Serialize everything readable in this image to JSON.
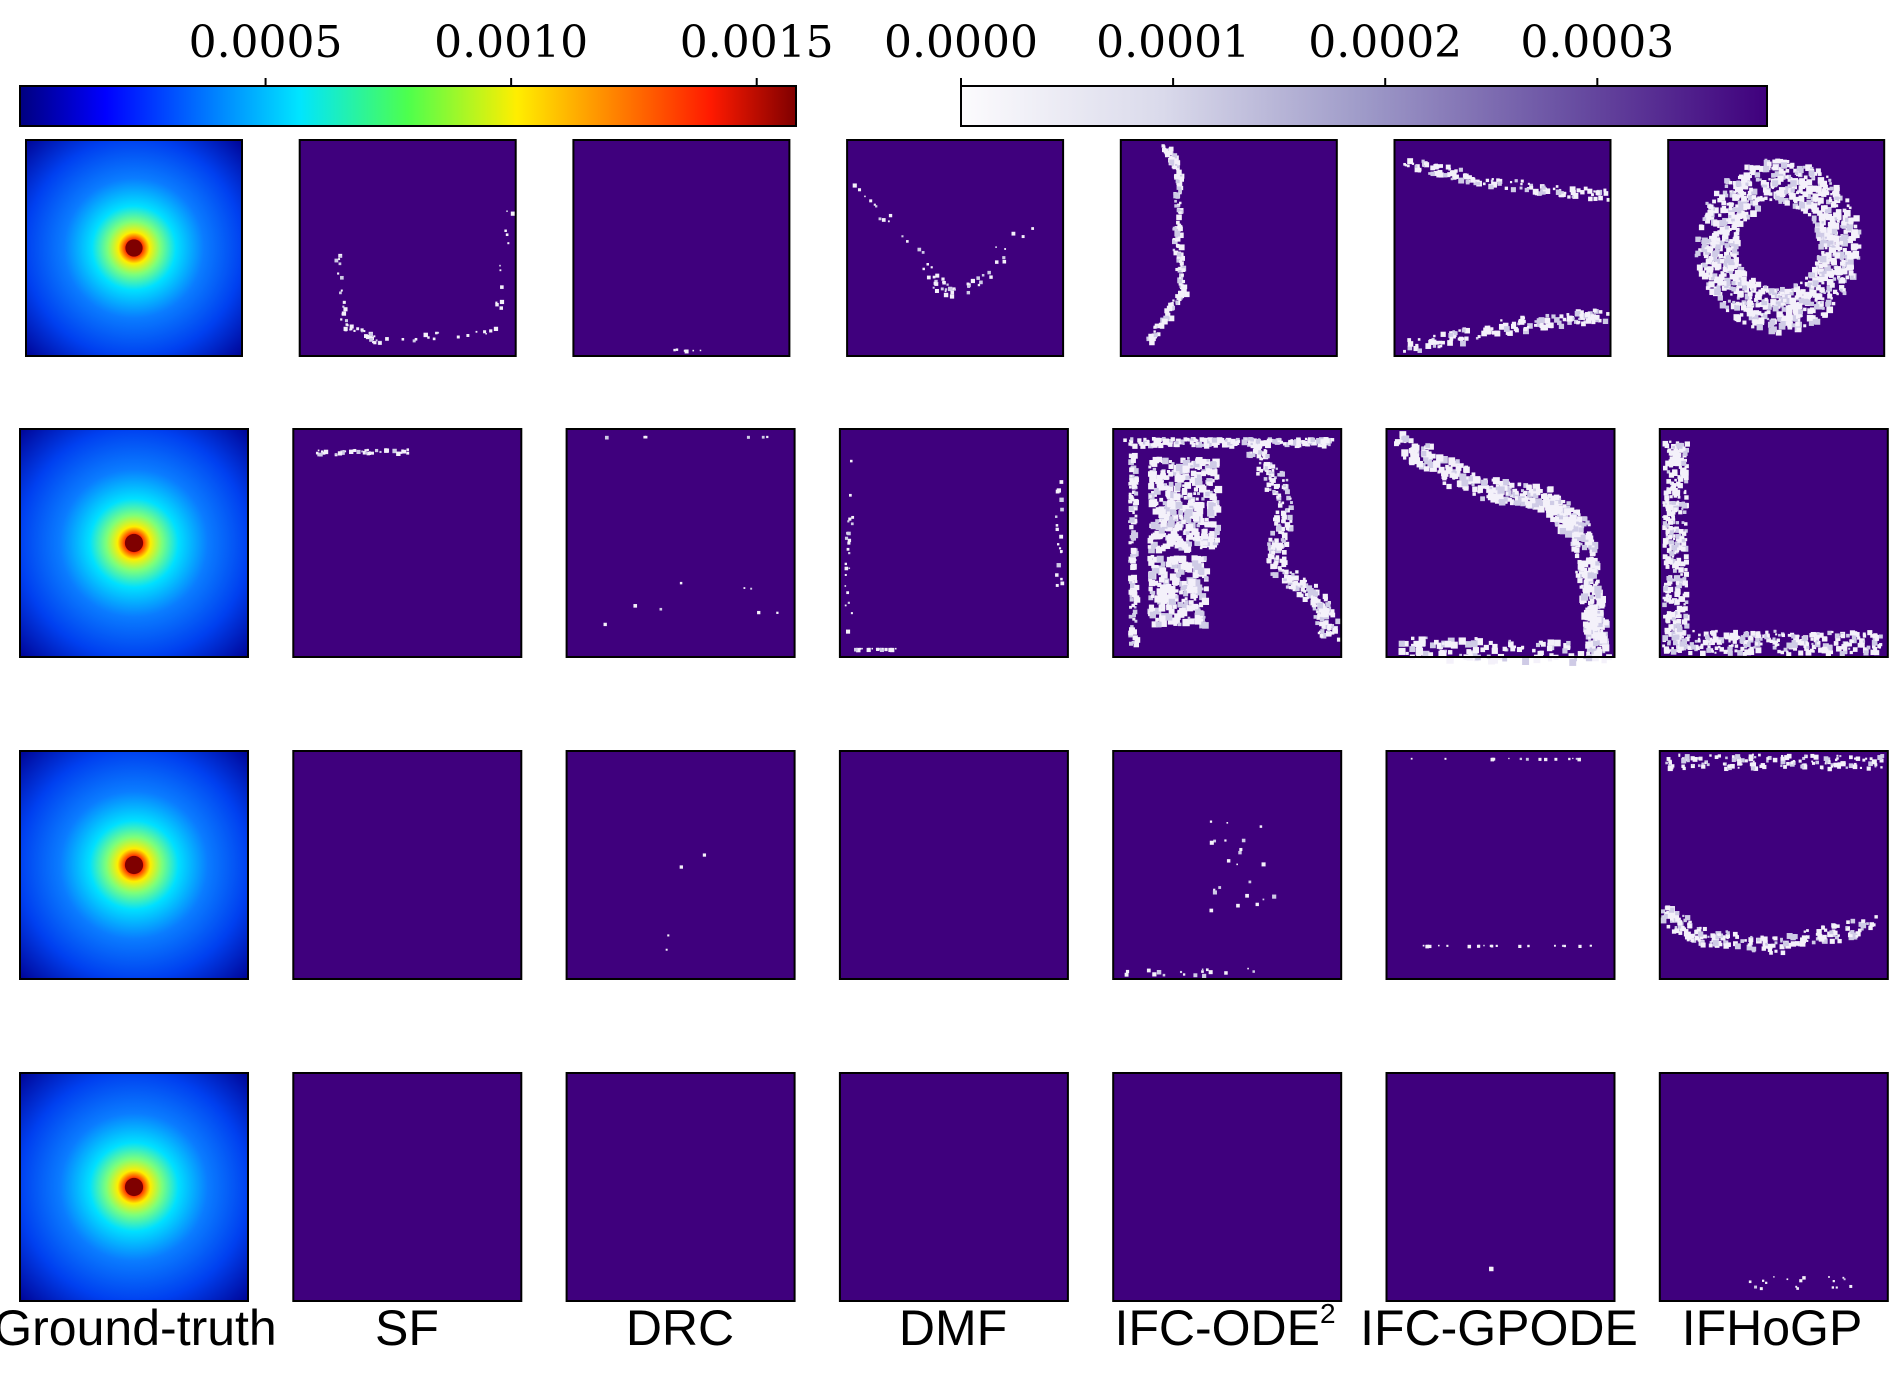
{
  "chart_data": {
    "type": "heatmap",
    "layout": "grid of 4 rows x 7 columns of heatmap panels",
    "columns": [
      "Ground-truth",
      "SF",
      "DRC",
      "DMF",
      "IFC-ODE",
      "IFC-GPODE",
      "IFHoGP"
    ],
    "column_superscripts": {
      "IFC-ODE": "2"
    },
    "colorbars": [
      {
        "name": "field",
        "colormap": "jet",
        "range": [
          0.0,
          0.00158
        ],
        "ticks": [
          "0.0005",
          "0.0010",
          "0.0015"
        ],
        "tick_values": [
          0.0005,
          0.001,
          0.0015
        ],
        "applies_to": [
          "Ground-truth"
        ]
      },
      {
        "name": "error",
        "colormap": "Purples",
        "range": [
          0.0,
          0.00038
        ],
        "ticks": [
          "0.0000",
          "0.0001",
          "0.0002",
          "0.0003"
        ],
        "tick_values": [
          0.0,
          0.0001,
          0.0002,
          0.0003
        ],
        "applies_to": [
          "SF",
          "DRC",
          "DMF",
          "IFC-ODE",
          "IFC-GPODE",
          "IFHoGP"
        ]
      }
    ],
    "ground_truth_peak_location": "center",
    "ground_truth_peak_value": 0.0016,
    "error_patterns": [
      [
        "none",
        "thin U-shaped trace along bottom and sides",
        "almost none",
        "sparse V-shaped trace",
        "curved vertical line near left",
        "lines along top and bottom edges",
        "ring around the center"
      ],
      [
        "none",
        "short streak along top edge",
        "almost none",
        "sparse specks along edges",
        "large blotches on left and right",
        "arc from top-left to bottom-right corner",
        "band along left and bottom edges"
      ],
      [
        "none",
        "none",
        "almost none",
        "none",
        "sparse specks along edges",
        "faint specks along edges",
        "specks along top and bottom edges"
      ],
      [
        "none",
        "none",
        "none",
        "none",
        "none",
        "single speck",
        "faint specks near bottom"
      ]
    ]
  }
}
